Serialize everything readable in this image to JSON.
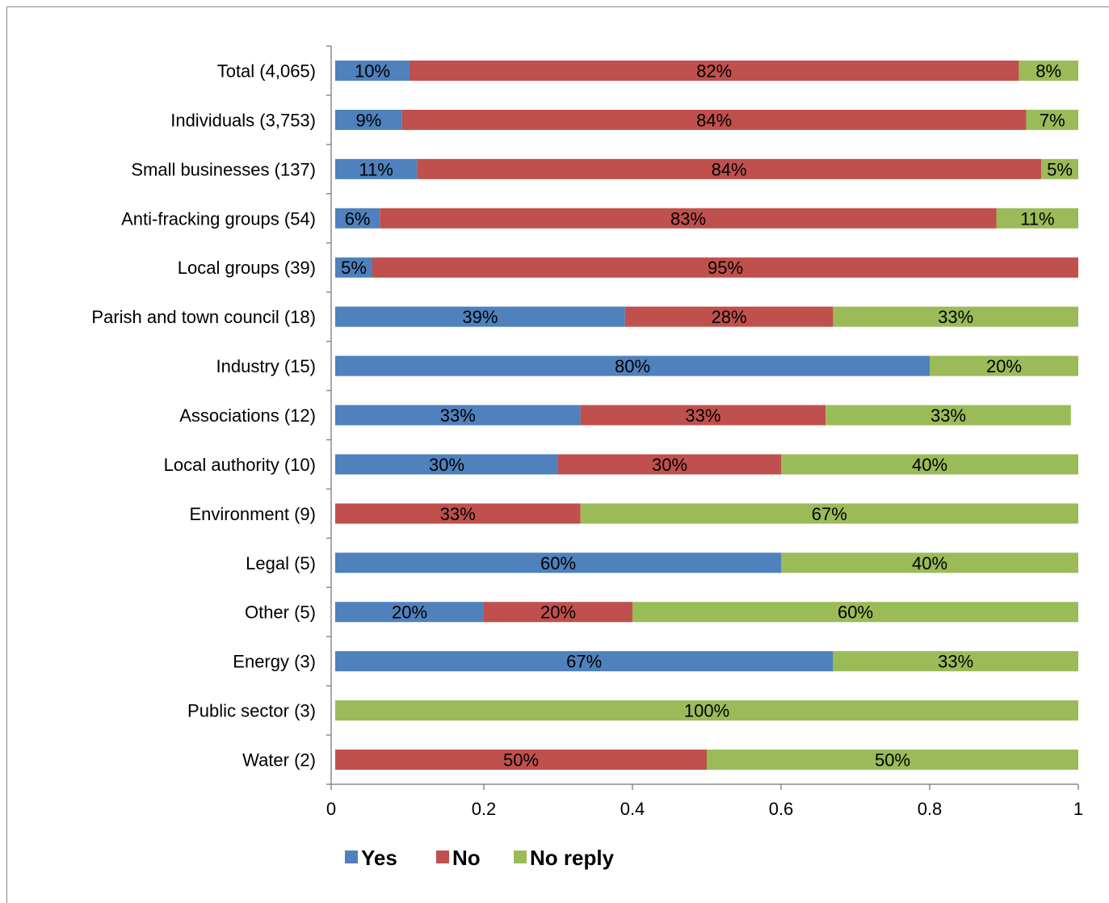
{
  "chart_data": {
    "type": "bar",
    "orientation": "horizontal",
    "stacked": true,
    "categories": [
      "Total (4,065)",
      "Individuals (3,753)",
      "Small businesses (137)",
      "Anti-fracking groups (54)",
      "Local groups (39)",
      "Parish and town council (18)",
      "Industry (15)",
      "Associations (12)",
      "Local authority (10)",
      "Environment (9)",
      "Legal (5)",
      "Other (5)",
      "Energy (3)",
      "Public sector (3)",
      "Water (2)"
    ],
    "series": [
      {
        "name": "Yes",
        "color": "#4f81bd",
        "values": [
          0.1,
          0.09,
          0.11,
          0.06,
          0.05,
          0.39,
          0.8,
          0.33,
          0.3,
          0,
          0.6,
          0.2,
          0.67,
          0,
          0
        ],
        "labels": [
          "10%",
          "9%",
          "11%",
          "6%",
          "5%",
          "39%",
          "80%",
          "33%",
          "30%",
          "",
          "60%",
          "20%",
          "67%",
          "",
          ""
        ]
      },
      {
        "name": "No",
        "color": "#c0504d",
        "values": [
          0.82,
          0.84,
          0.84,
          0.83,
          0.95,
          0.28,
          0,
          0.33,
          0.3,
          0.33,
          0,
          0.2,
          0,
          0,
          0.5
        ],
        "labels": [
          "82%",
          "84%",
          "84%",
          "83%",
          "95%",
          "28%",
          "",
          "33%",
          "30%",
          "33%",
          "",
          "20%",
          "",
          "",
          "50%"
        ]
      },
      {
        "name": "No reply",
        "color": "#9bbb59",
        "values": [
          0.08,
          0.07,
          0.05,
          0.11,
          0,
          0.33,
          0.2,
          0.33,
          0.4,
          0.67,
          0.4,
          0.6,
          0.33,
          1.0,
          0.5
        ],
        "labels": [
          "8%",
          "7%",
          "5%",
          "11%",
          "",
          "33%",
          "20%",
          "33%",
          "40%",
          "67%",
          "40%",
          "60%",
          "33%",
          "100%",
          "50%"
        ]
      }
    ],
    "xlim": [
      0,
      1
    ],
    "xticks": [
      "0",
      "0.2",
      "0.4",
      "0.6",
      "0.8",
      "1"
    ],
    "grid": false,
    "legend": "bottom"
  }
}
